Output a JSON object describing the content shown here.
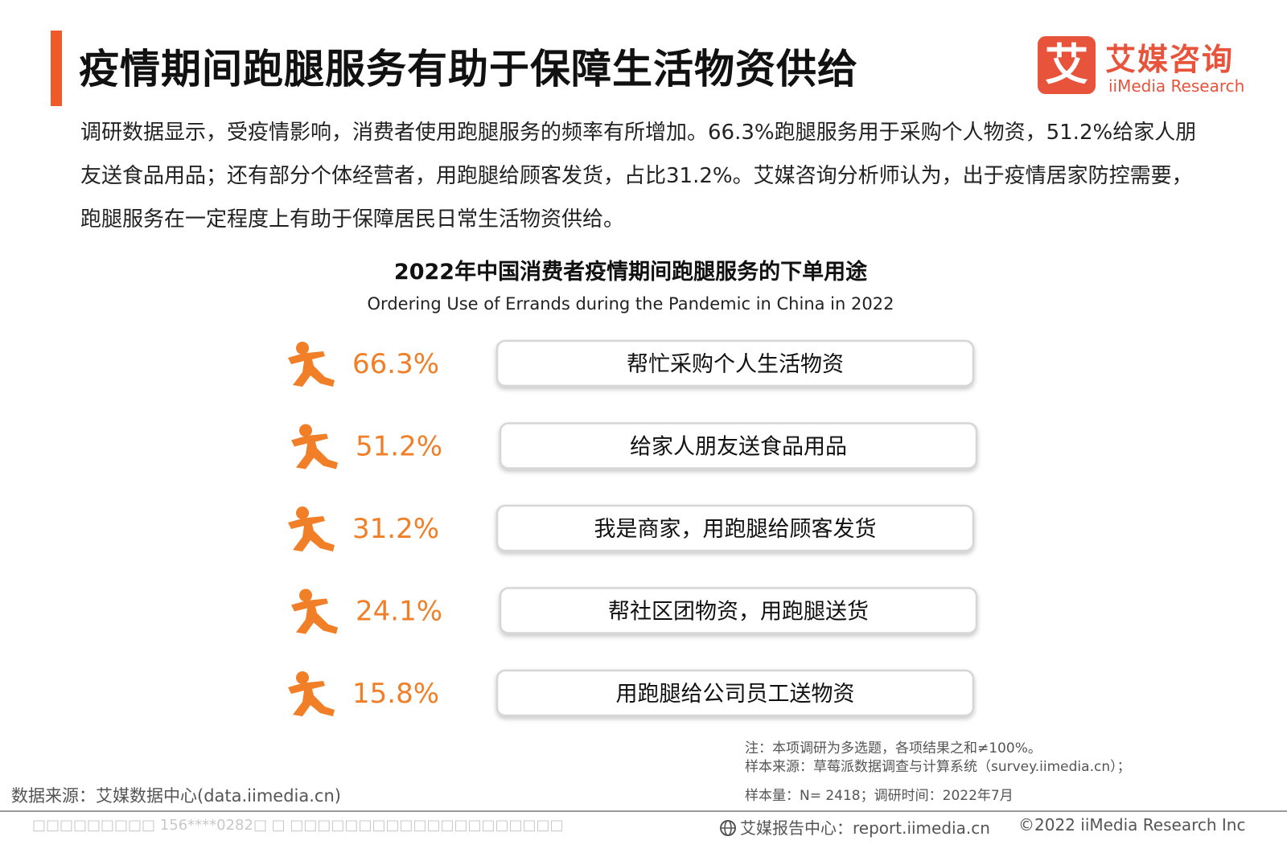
{
  "colors": {
    "accent": "#f26a21",
    "title_bar": "#ef5a28",
    "logo": "#e8533c",
    "value": "#f07f28",
    "box_border": "#d6d6d6"
  },
  "header": {
    "title": "疫情期间跑腿服务有助于保障生活物资供给",
    "logo": {
      "mark": "艾",
      "cn": "艾媒咨询",
      "en": "iiMedia Research"
    }
  },
  "intro": "调研数据显示，受疫情影响，消费者使用跑腿服务的频率有所增加。66.3%跑腿服务用于采购个人物资，51.2%给家人朋友送食品用品；还有部分个体经营者，用跑腿给顾客发货，占比31.2%。艾媒咨询分析师认为，出于疫情居家防控需要，跑腿服务在一定程度上有助于保障居民日常生活物资供给。",
  "chart_data": {
    "type": "table",
    "title": "2022年中国消费者疫情期间跑腿服务的下单用途",
    "subtitle": "Ordering Use of Errands during the Pandemic in China in 2022",
    "value_unit": "%",
    "icon": "running-person-icon",
    "categories": [
      "帮忙采购个人生活物资",
      "给家人朋友送食品用品",
      "我是商家，用跑腿给顾客发货",
      "帮社区团物资，用跑腿送货",
      "用跑腿给公司员工送物资"
    ],
    "values": [
      66.3,
      51.2,
      31.2,
      24.1,
      15.8
    ],
    "value_labels": [
      "66.3%",
      "51.2%",
      "31.2%",
      "24.1%",
      "15.8%"
    ]
  },
  "notes": {
    "line1": "注：本项调研为多选题，各项结果之和≠100%。",
    "line2": "样本来源：草莓派数据调查与计算系统（survey.iimedia.cn）；",
    "line3": "样本量：N= 2418；调研时间：2022年7月"
  },
  "footer": {
    "source": "数据来源：艾媒数据中心(data.iimedia.cn)",
    "watermark": "□□□□□□□□□ 156****0282□ □ □□□□□□□□□□□□□□□□□□□□",
    "report": "艾媒报告中心：report.iimedia.cn",
    "copyright": "©2022  iiMedia Research  Inc"
  }
}
